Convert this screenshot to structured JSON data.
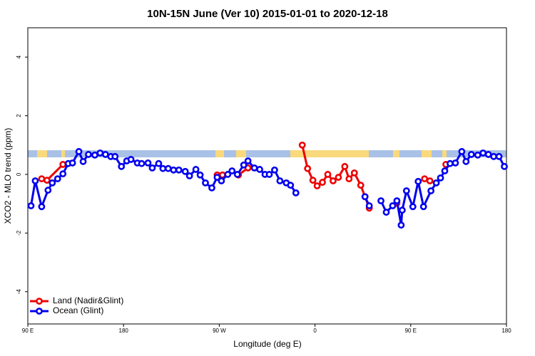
{
  "chart_data": {
    "type": "line",
    "title": "10N-15N June (Ver 10)   2015-01-01 to 2020-12-18",
    "x_label": "Longitude (deg E)",
    "y_label": "XCO2 - MLO trend (ppm)",
    "xlim": [
      90,
      540
    ],
    "xticks": [
      {
        "value": 90,
        "label": "90 E"
      },
      180,
      {
        "value": 270,
        "label": "90 W"
      },
      {
        "value": 360,
        "label": "0"
      },
      {
        "value": 450,
        "label": "90 E"
      },
      {
        "value": 540,
        "label": "180"
      }
    ],
    "ylim": [
      -5.1,
      5.0
    ],
    "yticks": [
      -4,
      -2,
      0,
      2,
      4
    ],
    "legend": "bottom-left",
    "series": [
      {
        "name": "Land (Nadir&Glint)",
        "color": "#ee0000",
        "x": [
          103,
          108,
          123,
          null,
          268,
          273,
          null,
          288,
          297,
          null,
          348,
          353,
          358,
          362,
          367,
          372,
          377,
          382,
          388,
          392,
          397,
          403,
          407,
          411,
          null,
          437,
          null,
          463,
          468,
          null,
          483
        ],
        "values": [
          -0.15,
          -0.2,
          0.34,
          null,
          -0.02,
          -0.02,
          null,
          -0.02,
          0.22,
          null,
          1.0,
          0.2,
          -0.2,
          -0.39,
          -0.27,
          0,
          -0.22,
          -0.1,
          0.27,
          -0.15,
          0.05,
          -0.37,
          -0.76,
          -1.15,
          null,
          -0.98,
          null,
          -0.15,
          -0.22,
          null,
          0.34
        ]
      },
      {
        "name": "Ocean (Glint)",
        "color": "#0000ee",
        "x": [
          93,
          97,
          103,
          109,
          113,
          118,
          123,
          128,
          132,
          138,
          142,
          147,
          153,
          158,
          163,
          168,
          172,
          178,
          183,
          187,
          193,
          197,
          203,
          207,
          213,
          217,
          222,
          227,
          232,
          238,
          242,
          248,
          252,
          257,
          263,
          268,
          272,
          278,
          282,
          287,
          293,
          297,
          303,
          308,
          313,
          317,
          322,
          327,
          333,
          337,
          342,
          null,
          407,
          411,
          null,
          422,
          427,
          433,
          437,
          441,
          442,
          446,
          452,
          457,
          462,
          469,
          474,
          478,
          482,
          487,
          492,
          498,
          502,
          507,
          513,
          518,
          523,
          528,
          533,
          538
        ],
        "values": [
          -1.07,
          -0.22,
          -1.1,
          -0.54,
          -0.29,
          -0.15,
          0.02,
          0.37,
          0.39,
          0.78,
          0.44,
          0.68,
          0.66,
          0.73,
          0.68,
          0.61,
          0.61,
          0.27,
          0.46,
          0.51,
          0.39,
          0.37,
          0.39,
          0.22,
          0.37,
          0.2,
          0.2,
          0.15,
          0.15,
          0.1,
          -0.05,
          0.17,
          -0.02,
          -0.29,
          -0.46,
          -0.1,
          -0.22,
          0,
          0.12,
          0,
          0.32,
          0.46,
          0.22,
          0.17,
          0,
          0,
          0.15,
          -0.22,
          -0.29,
          -0.37,
          -0.63,
          null,
          -0.76,
          -1.07,
          null,
          -0.9,
          -1.29,
          -1.07,
          -0.9,
          -1.73,
          -1.22,
          -0.56,
          -1.1,
          -0.24,
          -1.1,
          -0.56,
          -0.29,
          -0.12,
          0.12,
          0.37,
          0.39,
          0.78,
          0.44,
          0.68,
          0.66,
          0.73,
          0.68,
          0.61,
          0.61,
          0.27
        ]
      }
    ]
  }
}
